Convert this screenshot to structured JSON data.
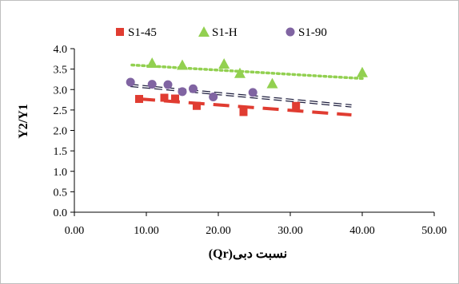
{
  "chart_data": {
    "type": "scatter",
    "title": "",
    "xlabel": "نسبت دبی(Qr)",
    "ylabel": "Y2/Y1",
    "xlim": [
      0,
      50
    ],
    "ylim": [
      0,
      4
    ],
    "x_ticks": [
      "0.00",
      "10.00",
      "20.00",
      "30.00",
      "40.00",
      "50.00"
    ],
    "y_ticks": [
      "0.0",
      "0.5",
      "1.0",
      "1.5",
      "2.0",
      "2.5",
      "3.0",
      "3.5",
      "4.0"
    ],
    "grid": false,
    "legend_position": "top",
    "series": [
      {
        "name": "S1-45",
        "marker": "square",
        "color": "#E03C31",
        "points": [
          [
            9.0,
            2.77
          ],
          [
            12.5,
            2.8
          ],
          [
            14.0,
            2.78
          ],
          [
            17.0,
            2.6
          ],
          [
            23.5,
            2.45
          ],
          [
            30.8,
            2.6
          ]
        ],
        "trendline": {
          "style": "long-dash",
          "x": [
            9.0,
            38.5
          ],
          "y": [
            2.77,
            2.38
          ]
        }
      },
      {
        "name": "S1-H",
        "marker": "triangle",
        "color": "#92D050",
        "points": [
          [
            10.8,
            3.65
          ],
          [
            15.0,
            3.6
          ],
          [
            20.8,
            3.63
          ],
          [
            23.0,
            3.4
          ],
          [
            27.5,
            3.15
          ],
          [
            40.0,
            3.42
          ]
        ],
        "trendline": {
          "style": "dotted",
          "x": [
            8.0,
            40.0
          ],
          "y": [
            3.6,
            3.27
          ]
        }
      },
      {
        "name": "S1-90",
        "marker": "circle",
        "color": "#8064A2",
        "points": [
          [
            7.8,
            3.18
          ],
          [
            10.8,
            3.13
          ],
          [
            13.0,
            3.12
          ],
          [
            15.0,
            2.95
          ],
          [
            16.5,
            3.02
          ],
          [
            19.3,
            2.82
          ],
          [
            24.8,
            2.93
          ]
        ],
        "trendline": {
          "style": "dashed",
          "x": [
            7.8,
            38.5
          ],
          "y": [
            3.1,
            2.6
          ]
        }
      }
    ]
  }
}
